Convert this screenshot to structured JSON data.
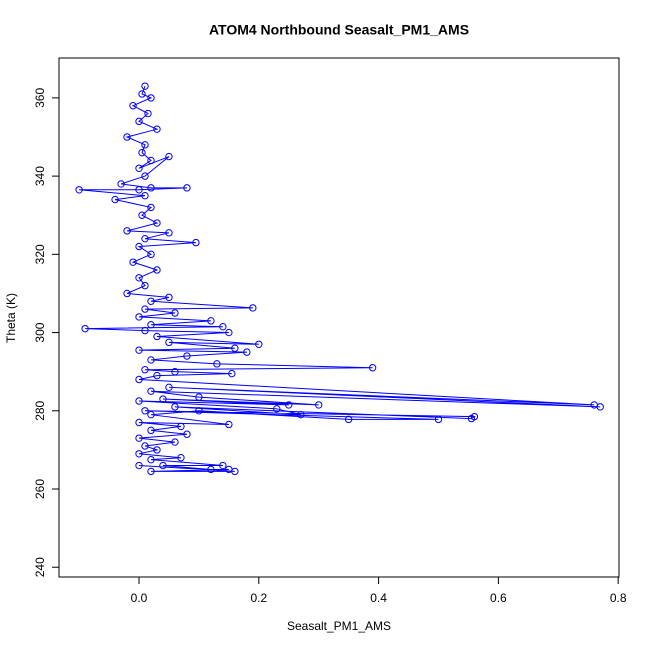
{
  "chart_data": {
    "type": "line",
    "title": "ATOM4 Northbound Seasalt_PM1_AMS",
    "x_label": "Seasalt_PM1_AMS",
    "y_label": "Theta (K)",
    "markers": true,
    "x": [
      0.01,
      0.005,
      0.02,
      -0.01,
      0.015,
      0.0,
      0.03,
      -0.02,
      0.01,
      0.005,
      0.02,
      0.0,
      0.05,
      0.01,
      -0.03,
      0.02,
      0.08,
      0.0,
      -0.1,
      0.01,
      -0.04,
      0.02,
      0.005,
      0.03,
      -0.02,
      0.05,
      0.01,
      0.095,
      0.0,
      0.02,
      -0.01,
      0.03,
      0.0,
      0.01,
      -0.02,
      0.05,
      0.02,
      0.19,
      0.01,
      0.06,
      0.0,
      0.12,
      0.02,
      0.14,
      -0.09,
      0.01,
      0.15,
      0.03,
      0.2,
      0.05,
      0.16,
      0.0,
      0.18,
      0.08,
      0.02,
      0.13,
      0.39,
      0.01,
      0.06,
      0.155,
      0.03,
      0.0,
      0.76,
      0.05,
      0.77,
      0.02,
      0.1,
      0.3,
      0.04,
      0.25,
      0.0,
      0.23,
      0.27,
      0.06,
      0.555,
      0.56,
      0.01,
      0.5,
      0.35,
      0.1,
      0.02,
      0.15,
      0.0,
      0.07,
      0.02,
      0.08,
      0.0,
      0.06,
      0.01,
      0.03,
      0.0,
      0.07,
      0.02,
      0.14,
      0.04,
      0.12,
      0.15,
      0.02,
      0.16,
      0.0
    ],
    "series": [
      {
        "color": "#0000ff",
        "values": [
          363,
          361,
          360,
          358,
          356,
          354,
          352,
          350,
          348,
          346,
          344,
          342,
          345,
          340,
          338,
          337,
          337,
          336.5,
          336.5,
          335,
          334,
          332,
          330,
          328,
          326,
          325.5,
          324,
          323,
          322,
          320,
          318,
          316,
          314,
          312,
          310,
          309,
          308,
          306.3,
          306,
          305,
          304,
          303,
          302,
          301.5,
          301,
          300.5,
          300,
          299,
          297,
          297.5,
          296,
          295.5,
          295,
          294,
          293,
          292,
          291,
          290.5,
          290,
          289.5,
          289,
          288,
          281.5,
          286,
          281,
          285,
          283.5,
          281.5,
          283,
          281.5,
          282.5,
          280.5,
          279,
          281,
          278,
          278.5,
          280,
          277.8,
          277.8,
          280,
          279,
          276.5,
          277,
          276,
          275,
          274,
          273,
          272,
          271,
          270,
          269,
          268,
          267.5,
          266,
          266,
          265,
          265,
          264.5,
          264.5,
          266
        ]
      }
    ],
    "xlim": [
      -0.1336,
      0.8014
    ],
    "ylim": [
      237.5,
      370.2
    ],
    "xticks": [
      {
        "value": 0,
        "label": "0.0"
      },
      {
        "value": 0.2,
        "label": "0.2"
      },
      {
        "value": 0.4,
        "label": "0.4"
      },
      {
        "value": 0.6,
        "label": "0.6"
      },
      {
        "value": 0.8,
        "label": "0.8"
      }
    ],
    "yticks": [
      240,
      260,
      280,
      300,
      320,
      340,
      360
    ]
  }
}
